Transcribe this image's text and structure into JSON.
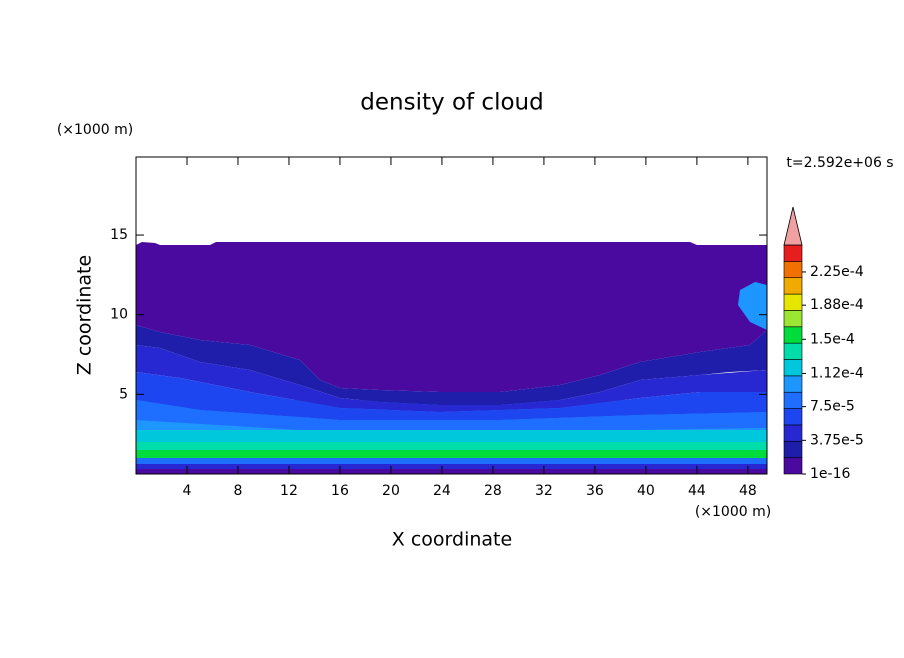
{
  "chart_data": {
    "type": "contour",
    "title": "density of cloud",
    "x_label": "X coordinate",
    "y_label": "Z coordinate",
    "x_unit": "(×1000 m)",
    "y_unit": "(×1000 m)",
    "time_label": "t=2.592e+06 s",
    "xlim": [
      0,
      49.5
    ],
    "ylim": [
      0,
      19.9
    ],
    "xticks": [
      4,
      8,
      12,
      16,
      20,
      24,
      28,
      32,
      36,
      40,
      44,
      48
    ],
    "yticks": [
      5,
      10,
      15
    ],
    "colorbar": {
      "clim": [
        0,
        0.000255
      ],
      "colors": [
        "#4a0aa0",
        "#1e1eaa",
        "#2828d2",
        "#1e46f0",
        "#1e6eff",
        "#1e96ff",
        "#00c8dc",
        "#00dcaa",
        "#00dc3c",
        "#9be632",
        "#e6e600",
        "#f0aa00",
        "#f07000",
        "#e61e1e"
      ],
      "extend_color": "#f0a0a0",
      "ticks": [
        {
          "value": 1e-16,
          "label": "1e-16"
        },
        {
          "value": 3.75e-05,
          "label": "3.75e-5"
        },
        {
          "value": 7.5e-05,
          "label": "7.5e-5"
        },
        {
          "value": 0.000112,
          "label": "1.12e-4"
        },
        {
          "value": 0.00015,
          "label": "1.5e-4"
        },
        {
          "value": 0.000188,
          "label": "1.88e-4"
        },
        {
          "value": 0.000225,
          "label": "2.25e-4"
        }
      ]
    }
  }
}
